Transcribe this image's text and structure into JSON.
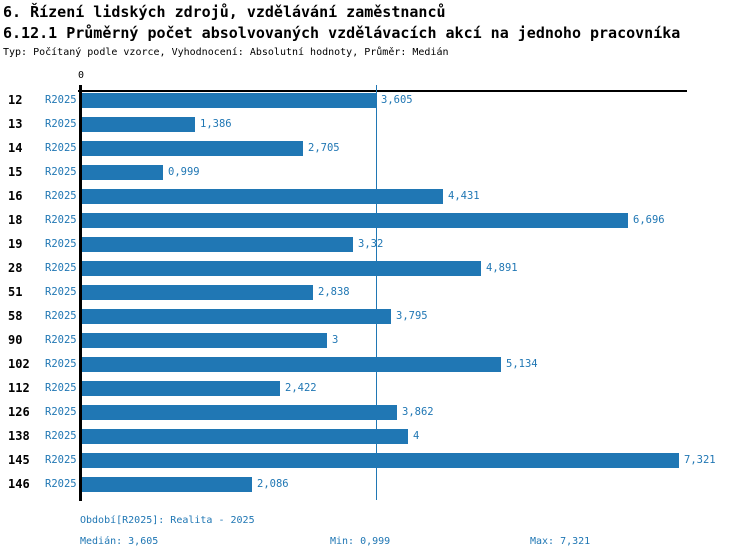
{
  "header": {
    "title1": "6. Řízení lidských zdrojů, vzdělávání zaměstnanců",
    "title2": "6.12.1 Průměrný počet absolvovaných vzdělávacích akcí na jednoho pracovníka",
    "subtitle": "Typ: Počítaný podle vzorce, Vyhodnocení: Absolutní hodnoty, Průměr: Medián"
  },
  "chart_data": {
    "type": "bar",
    "orientation": "horizontal",
    "title": "6.12.1 Průměrný počet absolvovaných vzdělávacích akcí na jednoho pracovníka",
    "xlabel": "",
    "ylabel": "",
    "categories": [
      "12",
      "13",
      "14",
      "15",
      "16",
      "18",
      "19",
      "28",
      "51",
      "58",
      "90",
      "102",
      "112",
      "126",
      "138",
      "145",
      "146"
    ],
    "series": [
      {
        "name": "R2025",
        "values": [
          3.605,
          1.386,
          2.705,
          0.999,
          4.431,
          6.696,
          3.32,
          4.891,
          2.838,
          3.795,
          3,
          5.134,
          2.422,
          3.862,
          4,
          7.321,
          2.086
        ]
      }
    ],
    "value_labels": [
      "3,605",
      "1,386",
      "2,705",
      "0,999",
      "4,431",
      "6,696",
      "3,32",
      "4,891",
      "2,838",
      "3,795",
      "3",
      "5,134",
      "2,422",
      "3,862",
      "4",
      "7,321",
      "2,086"
    ],
    "x_tick_labels": [
      "0"
    ],
    "xlim": [
      0,
      7.42
    ],
    "grid": false,
    "legend_position": "none",
    "bar_color": "#2077b4",
    "median_line_value": 3.605
  },
  "footer": {
    "period": "Období[R2025]: Realita - 2025",
    "median": "Medián: 3,605",
    "min": "Min: 0,999",
    "max": "Max: 7,321"
  },
  "colors": {
    "accent": "#2077b4",
    "text": "#000000",
    "background": "#ffffff"
  }
}
